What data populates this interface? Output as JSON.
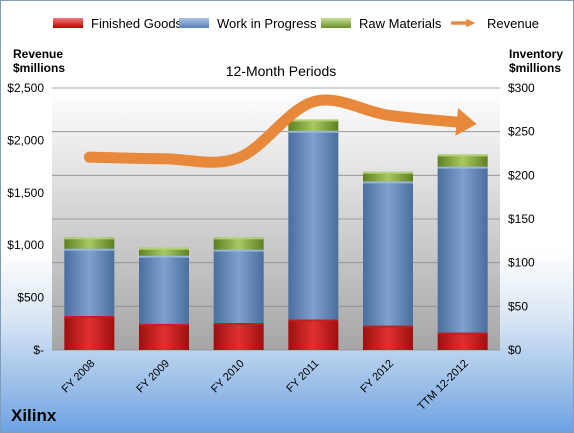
{
  "legend": {
    "finished_goods": "Finished Goods",
    "work_in_progress": "Work in Progress",
    "raw_materials": "Raw Materials",
    "revenue": "Revenue"
  },
  "left_axis_title": [
    "Revenue",
    "$millions"
  ],
  "right_axis_title": [
    "Inventory",
    "$millions"
  ],
  "plot_title": "12-Month Periods",
  "company": "Xilinx",
  "colors": {
    "finished_goods": "#c00000",
    "work_in_progress": "#5a82b8",
    "raw_materials": "#7a9a2e",
    "revenue": "#e8883a"
  },
  "chart_data": {
    "type": "bar",
    "stacked": true,
    "categories": [
      "FY 2008",
      "FY 2009",
      "FY 2010",
      "FY 2011",
      "FY 2012",
      "TTM 12-2012"
    ],
    "series": [
      {
        "name": "Finished Goods",
        "axis": "right",
        "values": [
          39,
          30,
          31,
          35,
          28,
          20
        ]
      },
      {
        "name": "Work in Progress",
        "axis": "right",
        "values": [
          77,
          78,
          84,
          216,
          165,
          190
        ]
      },
      {
        "name": "Raw Materials",
        "axis": "right",
        "values": [
          13,
          9,
          14,
          13,
          11,
          14
        ]
      },
      {
        "name": "Revenue",
        "type": "line",
        "axis": "left",
        "values": [
          1840,
          1825,
          1834,
          2369,
          2241,
          2170
        ]
      }
    ],
    "left_axis": {
      "ylim": [
        0,
        2500
      ],
      "ticks": [
        "$-",
        "$500",
        "$1,000",
        "$1,500",
        "$2,000",
        "$2,500"
      ]
    },
    "right_axis": {
      "ylim": [
        0,
        300
      ],
      "ticks": [
        "$0",
        "$50",
        "$100",
        "$150",
        "$200",
        "$250",
        "$300"
      ]
    },
    "grid": true,
    "legend_position": "top"
  }
}
